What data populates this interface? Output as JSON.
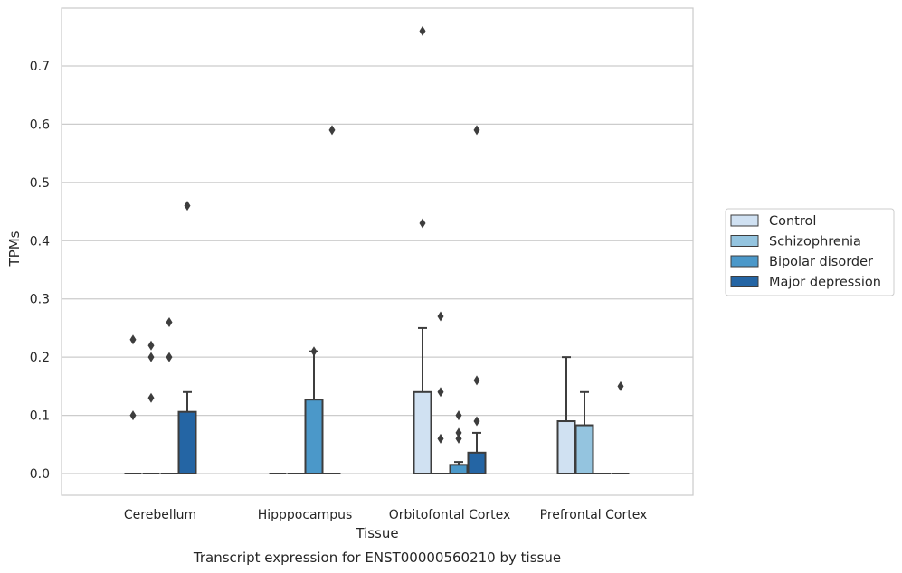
{
  "chart_data": {
    "type": "box",
    "title": "",
    "caption": "Transcript expression for ENST00000560210 by tissue",
    "xlabel": "Tissue",
    "ylabel": "TPMs",
    "ylim": [
      -0.037,
      0.8
    ],
    "yticks": [
      "0.0",
      "0.1",
      "0.2",
      "0.3",
      "0.4",
      "0.5",
      "0.6",
      "0.7"
    ],
    "grid": "horizontal",
    "legend_position": "right",
    "categories": [
      "Cerebellum",
      "Hipppocampus",
      "Orbitofontal Cortex",
      "Prefrontal Cortex"
    ],
    "series": [
      {
        "name": "Control",
        "color": "#d0e1f2",
        "boxes": [
          {
            "q1": 0,
            "median": 0,
            "q3": 0,
            "whisker_high": 0,
            "outliers": [
              0.1,
              0.23
            ]
          },
          {
            "q1": 0,
            "median": 0,
            "q3": 0,
            "whisker_high": 0,
            "outliers": []
          },
          {
            "q1": 0,
            "median": 0,
            "q3": 0.14,
            "whisker_high": 0.25,
            "outliers": [
              0.43,
              0.76
            ]
          },
          {
            "q1": 0,
            "median": 0,
            "q3": 0.09,
            "whisker_high": 0.2,
            "outliers": []
          }
        ]
      },
      {
        "name": "Schizophrenia",
        "color": "#94c4df",
        "boxes": [
          {
            "q1": 0,
            "median": 0,
            "q3": 0,
            "whisker_high": 0,
            "outliers": [
              0.13,
              0.2,
              0.22
            ]
          },
          {
            "q1": 0,
            "median": 0,
            "q3": 0,
            "whisker_high": 0,
            "outliers": []
          },
          {
            "q1": 0,
            "median": 0,
            "q3": 0,
            "whisker_high": 0,
            "outliers": [
              0.06,
              0.14,
              0.27
            ]
          },
          {
            "q1": 0,
            "median": 0,
            "q3": 0.083,
            "whisker_high": 0.14,
            "outliers": []
          }
        ]
      },
      {
        "name": "Bipolar disorder",
        "color": "#4b98c9",
        "boxes": [
          {
            "q1": 0,
            "median": 0,
            "q3": 0,
            "whisker_high": 0,
            "outliers": [
              0.2,
              0.26
            ]
          },
          {
            "q1": 0,
            "median": 0,
            "q3": 0.127,
            "whisker_high": 0.21,
            "outliers": [
              0.21
            ]
          },
          {
            "q1": 0,
            "median": 0,
            "q3": 0.015,
            "whisker_high": 0.02,
            "outliers": [
              0.06,
              0.07,
              0.1
            ]
          },
          {
            "q1": 0,
            "median": 0,
            "q3": 0,
            "whisker_high": 0,
            "outliers": []
          }
        ]
      },
      {
        "name": "Major depression",
        "color": "#2465a4",
        "boxes": [
          {
            "q1": 0,
            "median": 0,
            "q3": 0.106,
            "whisker_high": 0.14,
            "outliers": [
              0.46
            ]
          },
          {
            "q1": 0,
            "median": 0,
            "q3": 0,
            "whisker_high": 0,
            "outliers": [
              0.59
            ]
          },
          {
            "q1": 0,
            "median": 0,
            "q3": 0.036,
            "whisker_high": 0.07,
            "outliers": [
              0.09,
              0.16,
              0.59
            ]
          },
          {
            "q1": 0,
            "median": 0,
            "q3": 0,
            "whisker_high": 0,
            "outliers": [
              0.15
            ]
          }
        ]
      }
    ]
  }
}
